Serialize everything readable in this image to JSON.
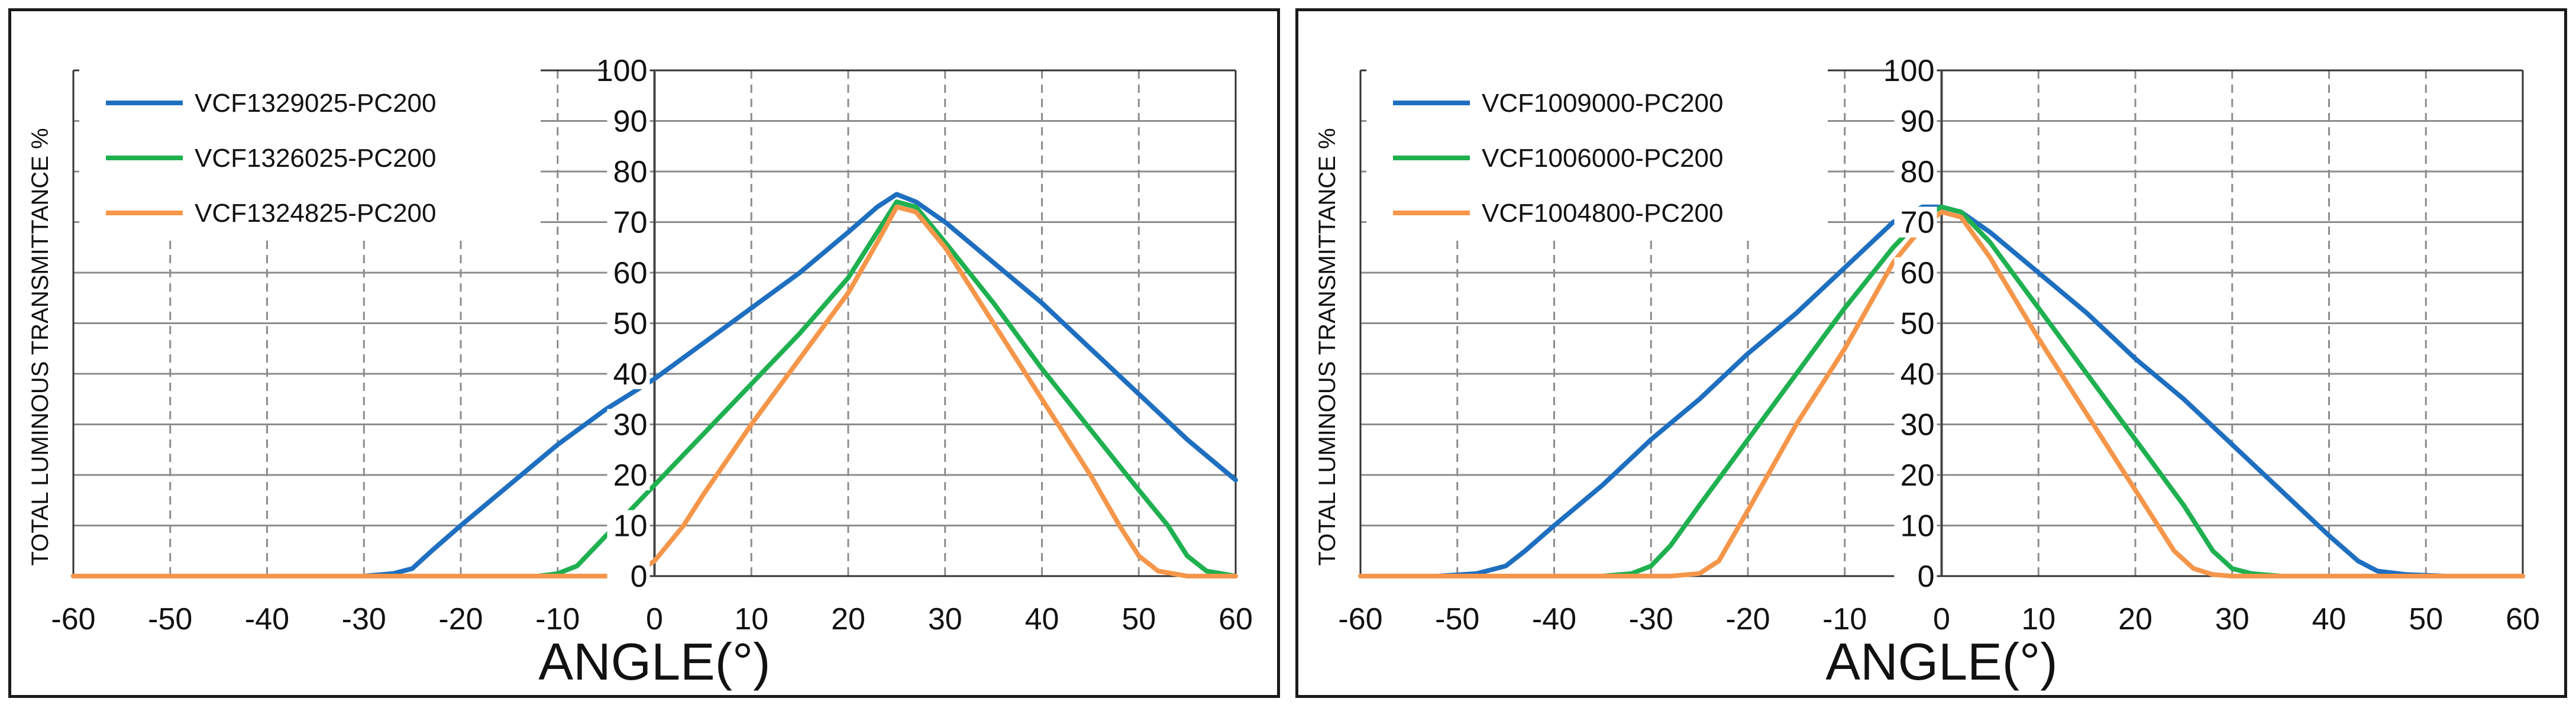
{
  "chart_data": [
    {
      "type": "line",
      "xlabel": "ANGLE(°)",
      "ylabel": "TOTAL LUMINOUS TRANSMITTANCE %",
      "xlim": [
        -60,
        60
      ],
      "ylim": [
        0,
        100
      ],
      "x_ticks": [
        "-60",
        "-50",
        "-40",
        "-30",
        "-20",
        "-10",
        "0",
        "10",
        "20",
        "30",
        "40",
        "50",
        "60"
      ],
      "y_ticks": [
        "0",
        "10",
        "20",
        "30",
        "40",
        "50",
        "60",
        "70",
        "80",
        "90",
        "100"
      ],
      "grid": true,
      "legend_position": "top-left",
      "series": [
        {
          "name": "VCF1329025-PC200",
          "color": "#1f6fc0",
          "x": [
            -60,
            -40,
            -30,
            -27,
            -25,
            -23,
            -20,
            -15,
            -10,
            -5,
            0,
            5,
            10,
            15,
            20,
            23,
            25,
            27,
            30,
            35,
            40,
            45,
            50,
            55,
            60
          ],
          "y": [
            0,
            0,
            0,
            0.5,
            1.5,
            5,
            10,
            18,
            26,
            33,
            39,
            46,
            53,
            60,
            68,
            73,
            75.5,
            74,
            70,
            62,
            54,
            45,
            36,
            27,
            19
          ]
        },
        {
          "name": "VCF1326025-PC200",
          "color": "#1fb050",
          "x": [
            -60,
            -20,
            -12,
            -10,
            -8,
            -5,
            0,
            5,
            10,
            15,
            20,
            23,
            25,
            27,
            30,
            35,
            40,
            45,
            50,
            53,
            55,
            57,
            60
          ],
          "y": [
            0,
            0,
            0,
            0.5,
            2,
            8,
            18,
            28,
            38,
            48,
            59,
            68,
            74,
            73,
            66,
            54,
            41,
            29,
            17,
            10,
            4,
            1,
            0
          ]
        },
        {
          "name": "VCF1324825-PC200",
          "color": "#f5964a",
          "x": [
            -60,
            -5,
            -2,
            0,
            3,
            5,
            10,
            15,
            20,
            23,
            25,
            27,
            30,
            35,
            40,
            45,
            48,
            50,
            52,
            55,
            60
          ],
          "y": [
            0,
            0,
            0.5,
            3,
            10,
            16,
            30,
            43,
            56,
            66,
            73,
            72,
            65,
            50,
            35,
            20,
            10,
            4,
            1,
            0,
            0
          ]
        }
      ]
    },
    {
      "type": "line",
      "xlabel": "ANGLE(°)",
      "ylabel": "TOTAL LUMINOUS TRANSMITTANCE %",
      "xlim": [
        -60,
        60
      ],
      "ylim": [
        0,
        100
      ],
      "x_ticks": [
        "-60",
        "-50",
        "-40",
        "-30",
        "-20",
        "-10",
        "0",
        "10",
        "20",
        "30",
        "40",
        "50",
        "60"
      ],
      "y_ticks": [
        "0",
        "10",
        "20",
        "30",
        "40",
        "50",
        "60",
        "70",
        "80",
        "90",
        "100"
      ],
      "grid": true,
      "legend_position": "top-left",
      "series": [
        {
          "name": "VCF1009000-PC200",
          "color": "#1f6fc0",
          "x": [
            -60,
            -52,
            -48,
            -45,
            -43,
            -40,
            -35,
            -30,
            -25,
            -20,
            -15,
            -10,
            -5,
            -2,
            0,
            2,
            5,
            10,
            15,
            20,
            25,
            30,
            35,
            40,
            43,
            45,
            48,
            52,
            60
          ],
          "y": [
            0,
            0,
            0.5,
            2,
            5,
            10,
            18,
            27,
            35,
            44,
            52,
            61,
            70,
            73,
            73,
            72,
            68,
            60,
            52,
            43,
            35,
            26,
            17,
            8,
            3,
            1,
            0.3,
            0,
            0
          ]
        },
        {
          "name": "VCF1006000-PC200",
          "color": "#1fb050",
          "x": [
            -60,
            -35,
            -32,
            -30,
            -28,
            -25,
            -20,
            -15,
            -10,
            -5,
            -2,
            0,
            2,
            5,
            10,
            15,
            20,
            25,
            28,
            30,
            32,
            35,
            60
          ],
          "y": [
            0,
            0,
            0.5,
            2,
            6,
            14,
            27,
            40,
            53,
            65,
            71,
            73,
            72,
            66,
            53,
            40,
            27,
            14,
            5,
            1.5,
            0.5,
            0,
            0
          ]
        },
        {
          "name": "VCF1004800-PC200",
          "color": "#f5964a",
          "x": [
            -60,
            -28,
            -25,
            -23,
            -20,
            -15,
            -10,
            -5,
            -2,
            0,
            2,
            5,
            10,
            15,
            20,
            22,
            24,
            26,
            28,
            30,
            60
          ],
          "y": [
            0,
            0,
            0.5,
            3,
            13,
            30,
            45,
            62,
            69,
            72,
            71,
            63,
            47,
            32,
            17,
            11,
            5,
            1.5,
            0.3,
            0,
            0
          ]
        }
      ]
    }
  ]
}
